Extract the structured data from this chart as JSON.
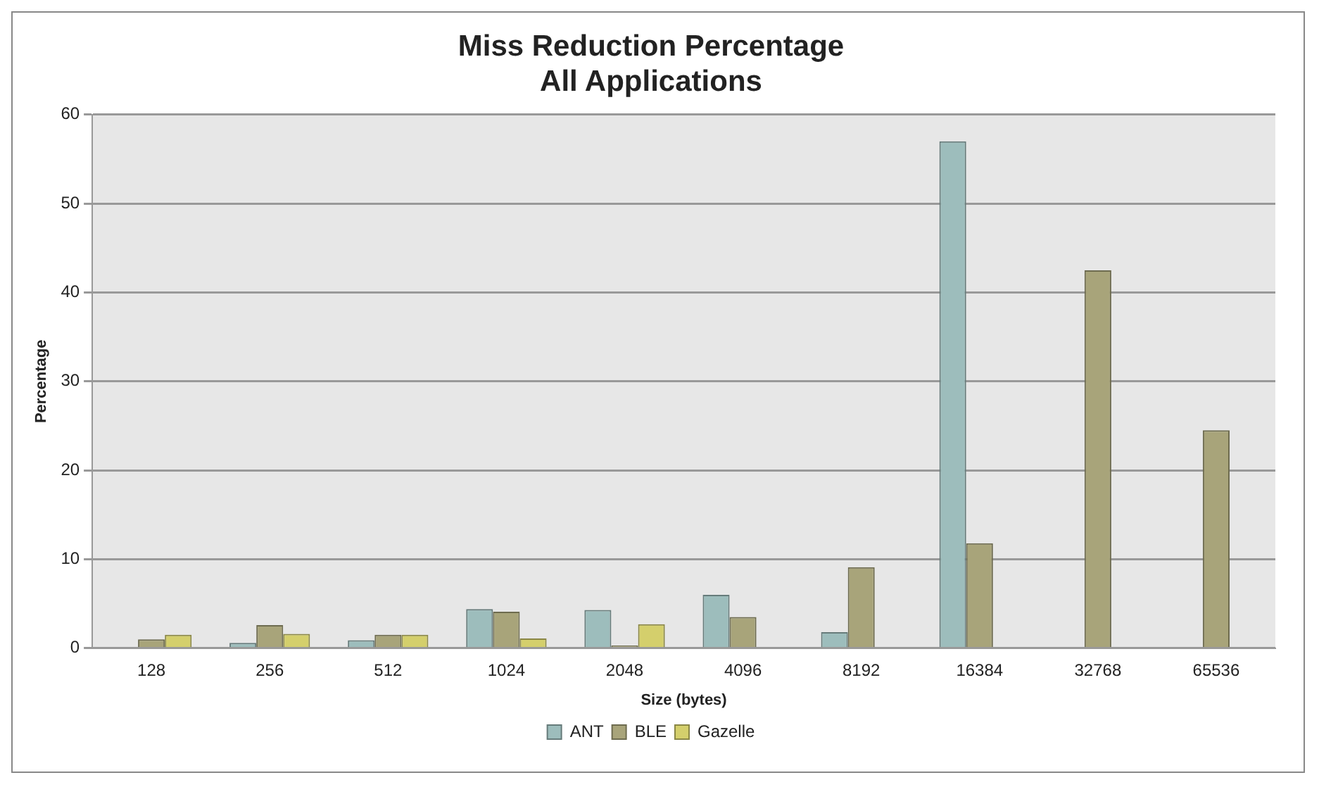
{
  "chart_data": {
    "type": "bar",
    "title": "Miss Reduction Percentage\nAll Applications",
    "xlabel": "Size (bytes)",
    "ylabel": "Percentage",
    "categories": [
      "128",
      "256",
      "512",
      "1024",
      "2048",
      "4096",
      "8192",
      "16384",
      "32768",
      "65536"
    ],
    "series": [
      {
        "name": "ANT",
        "color": "#9dbdbc",
        "values": [
          0,
          0.6,
          0.9,
          4.4,
          4.3,
          6.0,
          1.8,
          57,
          0,
          0
        ]
      },
      {
        "name": "BLE",
        "color": "#a8a47a",
        "values": [
          1.0,
          2.6,
          1.5,
          4.1,
          0.3,
          3.5,
          9.1,
          11.8,
          42.5,
          24.5
        ]
      },
      {
        "name": "Gazelle",
        "color": "#d4cf6c",
        "values": [
          1.5,
          1.6,
          1.5,
          1.1,
          2.7,
          0,
          0,
          0,
          0,
          0
        ]
      }
    ],
    "ylim": [
      0,
      60
    ],
    "yticks": [
      0,
      10,
      20,
      30,
      40,
      50,
      60
    ],
    "grid": "y",
    "legend": "bottom"
  }
}
